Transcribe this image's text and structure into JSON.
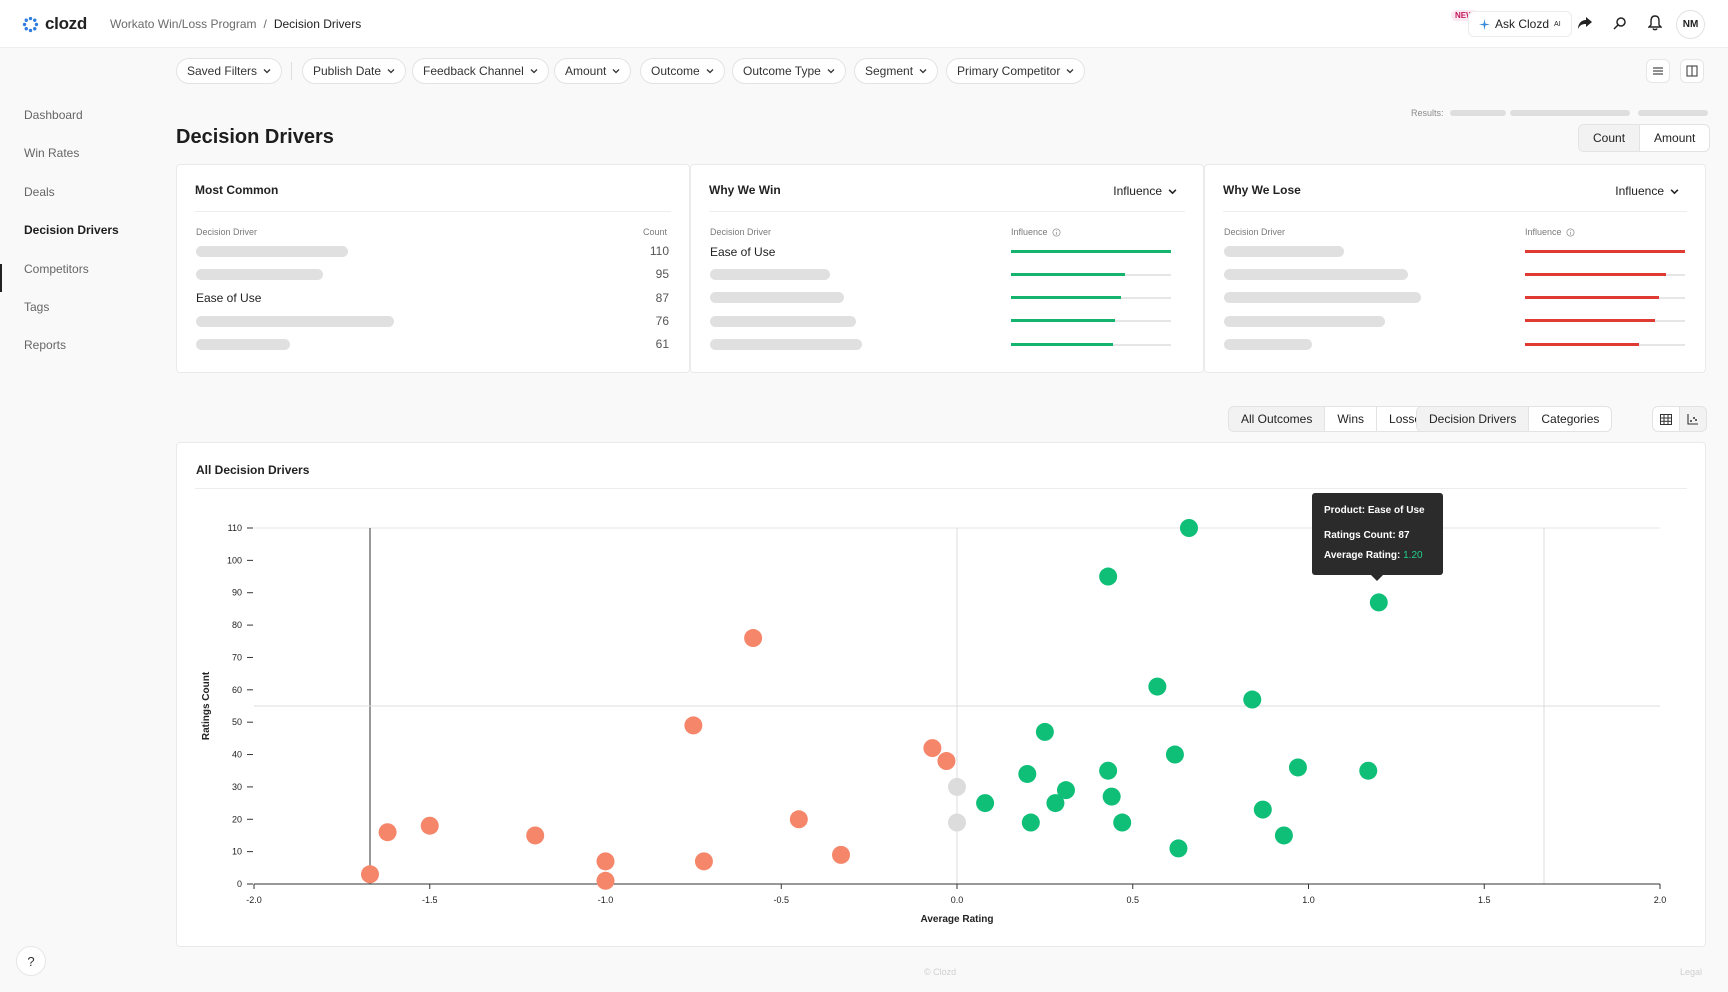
{
  "app": {
    "logo_text": "clozd",
    "breadcrumb": [
      "Workato Win/Loss Program",
      "/",
      "Decision Drivers"
    ],
    "new_badge": "NEW",
    "ask_label": "Ask Clozd",
    "ask_sup": "AI",
    "avatar": "NM"
  },
  "sidebar": {
    "items": [
      {
        "label": "Dashboard",
        "active": false
      },
      {
        "label": "Win Rates",
        "active": false
      },
      {
        "label": "Deals",
        "active": false
      },
      {
        "label": "Decision Drivers",
        "active": true
      },
      {
        "label": "Competitors",
        "active": false
      },
      {
        "label": "Tags",
        "active": false
      },
      {
        "label": "Reports",
        "active": false
      }
    ]
  },
  "filters": [
    "Saved Filters",
    "Publish Date",
    "Feedback Channel",
    "Amount",
    "Outcome",
    "Outcome Type",
    "Segment",
    "Primary Competitor"
  ],
  "results_label": "Results:",
  "page_title": "Decision Drivers",
  "metric_toggle": {
    "options": [
      "Count",
      "Amount"
    ],
    "selected": "Count"
  },
  "cards": {
    "most_common": {
      "title": "Most Common",
      "col_driver": "Decision Driver",
      "col_count": "Count",
      "rows": [
        {
          "label": "",
          "count": "110"
        },
        {
          "label": "",
          "count": "95"
        },
        {
          "label": "Ease of Use",
          "count": "87"
        },
        {
          "label": "",
          "count": "76"
        },
        {
          "label": "",
          "count": "61"
        }
      ]
    },
    "why_win": {
      "title": "Why We Win",
      "dropdown": "Influence",
      "col_driver": "Decision Driver",
      "col_influence": "Influence",
      "rows": [
        {
          "label": "Ease of Use",
          "influence": 1.0
        },
        {
          "label": "",
          "influence": 0.71
        },
        {
          "label": "",
          "influence": 0.69
        },
        {
          "label": "",
          "influence": 0.65
        },
        {
          "label": "",
          "influence": 0.64
        }
      ],
      "color": "#14b46e"
    },
    "why_lose": {
      "title": "Why We Lose",
      "dropdown": "Influence",
      "col_driver": "Decision Driver",
      "col_influence": "Influence",
      "rows": [
        {
          "label": "",
          "influence": 1.0
        },
        {
          "label": "",
          "influence": 0.88
        },
        {
          "label": "",
          "influence": 0.84
        },
        {
          "label": "",
          "influence": 0.81
        },
        {
          "label": "",
          "influence": 0.71
        }
      ],
      "color": "#e03b33"
    }
  },
  "chart_toggles": {
    "outcome": {
      "options": [
        "All Outcomes",
        "Wins",
        "Losses"
      ],
      "selected": "All Outcomes"
    },
    "grouping": {
      "options": [
        "Decision Drivers",
        "Categories"
      ],
      "selected": "Decision Drivers"
    }
  },
  "chart_title": "All Decision Drivers",
  "tooltip": {
    "title": "Product: Ease of Use",
    "count_label": "Ratings Count: 87",
    "rating_label": "Average Rating:",
    "rating_value": "1.20"
  },
  "footer": {
    "center": "© Clozd",
    "right": "Legal"
  },
  "colors": {
    "positive": "#0fbf78",
    "negative": "#f5866a",
    "neutral": "#dcdcdc"
  },
  "chart_data": {
    "type": "scatter",
    "xlabel": "Average Rating",
    "ylabel": "Ratings Count",
    "xlim": [
      -2.0,
      2.0
    ],
    "ylim": [
      0,
      110
    ],
    "xticks": [
      "-2.0",
      "-1.5",
      "-1.0",
      "-0.5",
      "0.0",
      "0.5",
      "1.0",
      "1.5",
      "2.0"
    ],
    "yticks": [
      "0",
      "10",
      "20",
      "30",
      "40",
      "50",
      "60",
      "70",
      "80",
      "90",
      "100",
      "110"
    ],
    "reference_lines": {
      "x": [
        -1.67,
        0.0,
        1.67
      ],
      "y": [
        55
      ]
    },
    "points": [
      {
        "x": -1.67,
        "y": 3,
        "group": "negative"
      },
      {
        "x": -1.62,
        "y": 16,
        "group": "negative"
      },
      {
        "x": -1.5,
        "y": 18,
        "group": "negative"
      },
      {
        "x": -1.2,
        "y": 15,
        "group": "negative"
      },
      {
        "x": -1.0,
        "y": 7,
        "group": "negative"
      },
      {
        "x": -1.0,
        "y": 1,
        "group": "negative"
      },
      {
        "x": -0.75,
        "y": 49,
        "group": "negative"
      },
      {
        "x": -0.72,
        "y": 7,
        "group": "negative"
      },
      {
        "x": -0.58,
        "y": 76,
        "group": "negative"
      },
      {
        "x": -0.45,
        "y": 20,
        "group": "negative"
      },
      {
        "x": -0.33,
        "y": 9,
        "group": "negative"
      },
      {
        "x": -0.07,
        "y": 42,
        "group": "negative"
      },
      {
        "x": -0.03,
        "y": 38,
        "group": "negative"
      },
      {
        "x": 0.0,
        "y": 30,
        "group": "neutral"
      },
      {
        "x": 0.0,
        "y": 19,
        "group": "neutral"
      },
      {
        "x": 0.08,
        "y": 25,
        "group": "positive"
      },
      {
        "x": 0.2,
        "y": 34,
        "group": "positive"
      },
      {
        "x": 0.21,
        "y": 19,
        "group": "positive"
      },
      {
        "x": 0.25,
        "y": 47,
        "group": "positive"
      },
      {
        "x": 0.28,
        "y": 25,
        "group": "positive"
      },
      {
        "x": 0.31,
        "y": 29,
        "group": "positive"
      },
      {
        "x": 0.43,
        "y": 95,
        "group": "positive"
      },
      {
        "x": 0.43,
        "y": 35,
        "group": "positive"
      },
      {
        "x": 0.44,
        "y": 27,
        "group": "positive"
      },
      {
        "x": 0.47,
        "y": 19,
        "group": "positive"
      },
      {
        "x": 0.57,
        "y": 61,
        "group": "positive"
      },
      {
        "x": 0.62,
        "y": 40,
        "group": "positive"
      },
      {
        "x": 0.63,
        "y": 11,
        "group": "positive"
      },
      {
        "x": 0.66,
        "y": 110,
        "group": "positive"
      },
      {
        "x": 0.84,
        "y": 57,
        "group": "positive"
      },
      {
        "x": 0.87,
        "y": 23,
        "group": "positive"
      },
      {
        "x": 0.93,
        "y": 15,
        "group": "positive"
      },
      {
        "x": 0.97,
        "y": 36,
        "group": "positive"
      },
      {
        "x": 1.17,
        "y": 35,
        "group": "positive"
      },
      {
        "x": 1.2,
        "y": 87,
        "group": "positive"
      }
    ]
  }
}
